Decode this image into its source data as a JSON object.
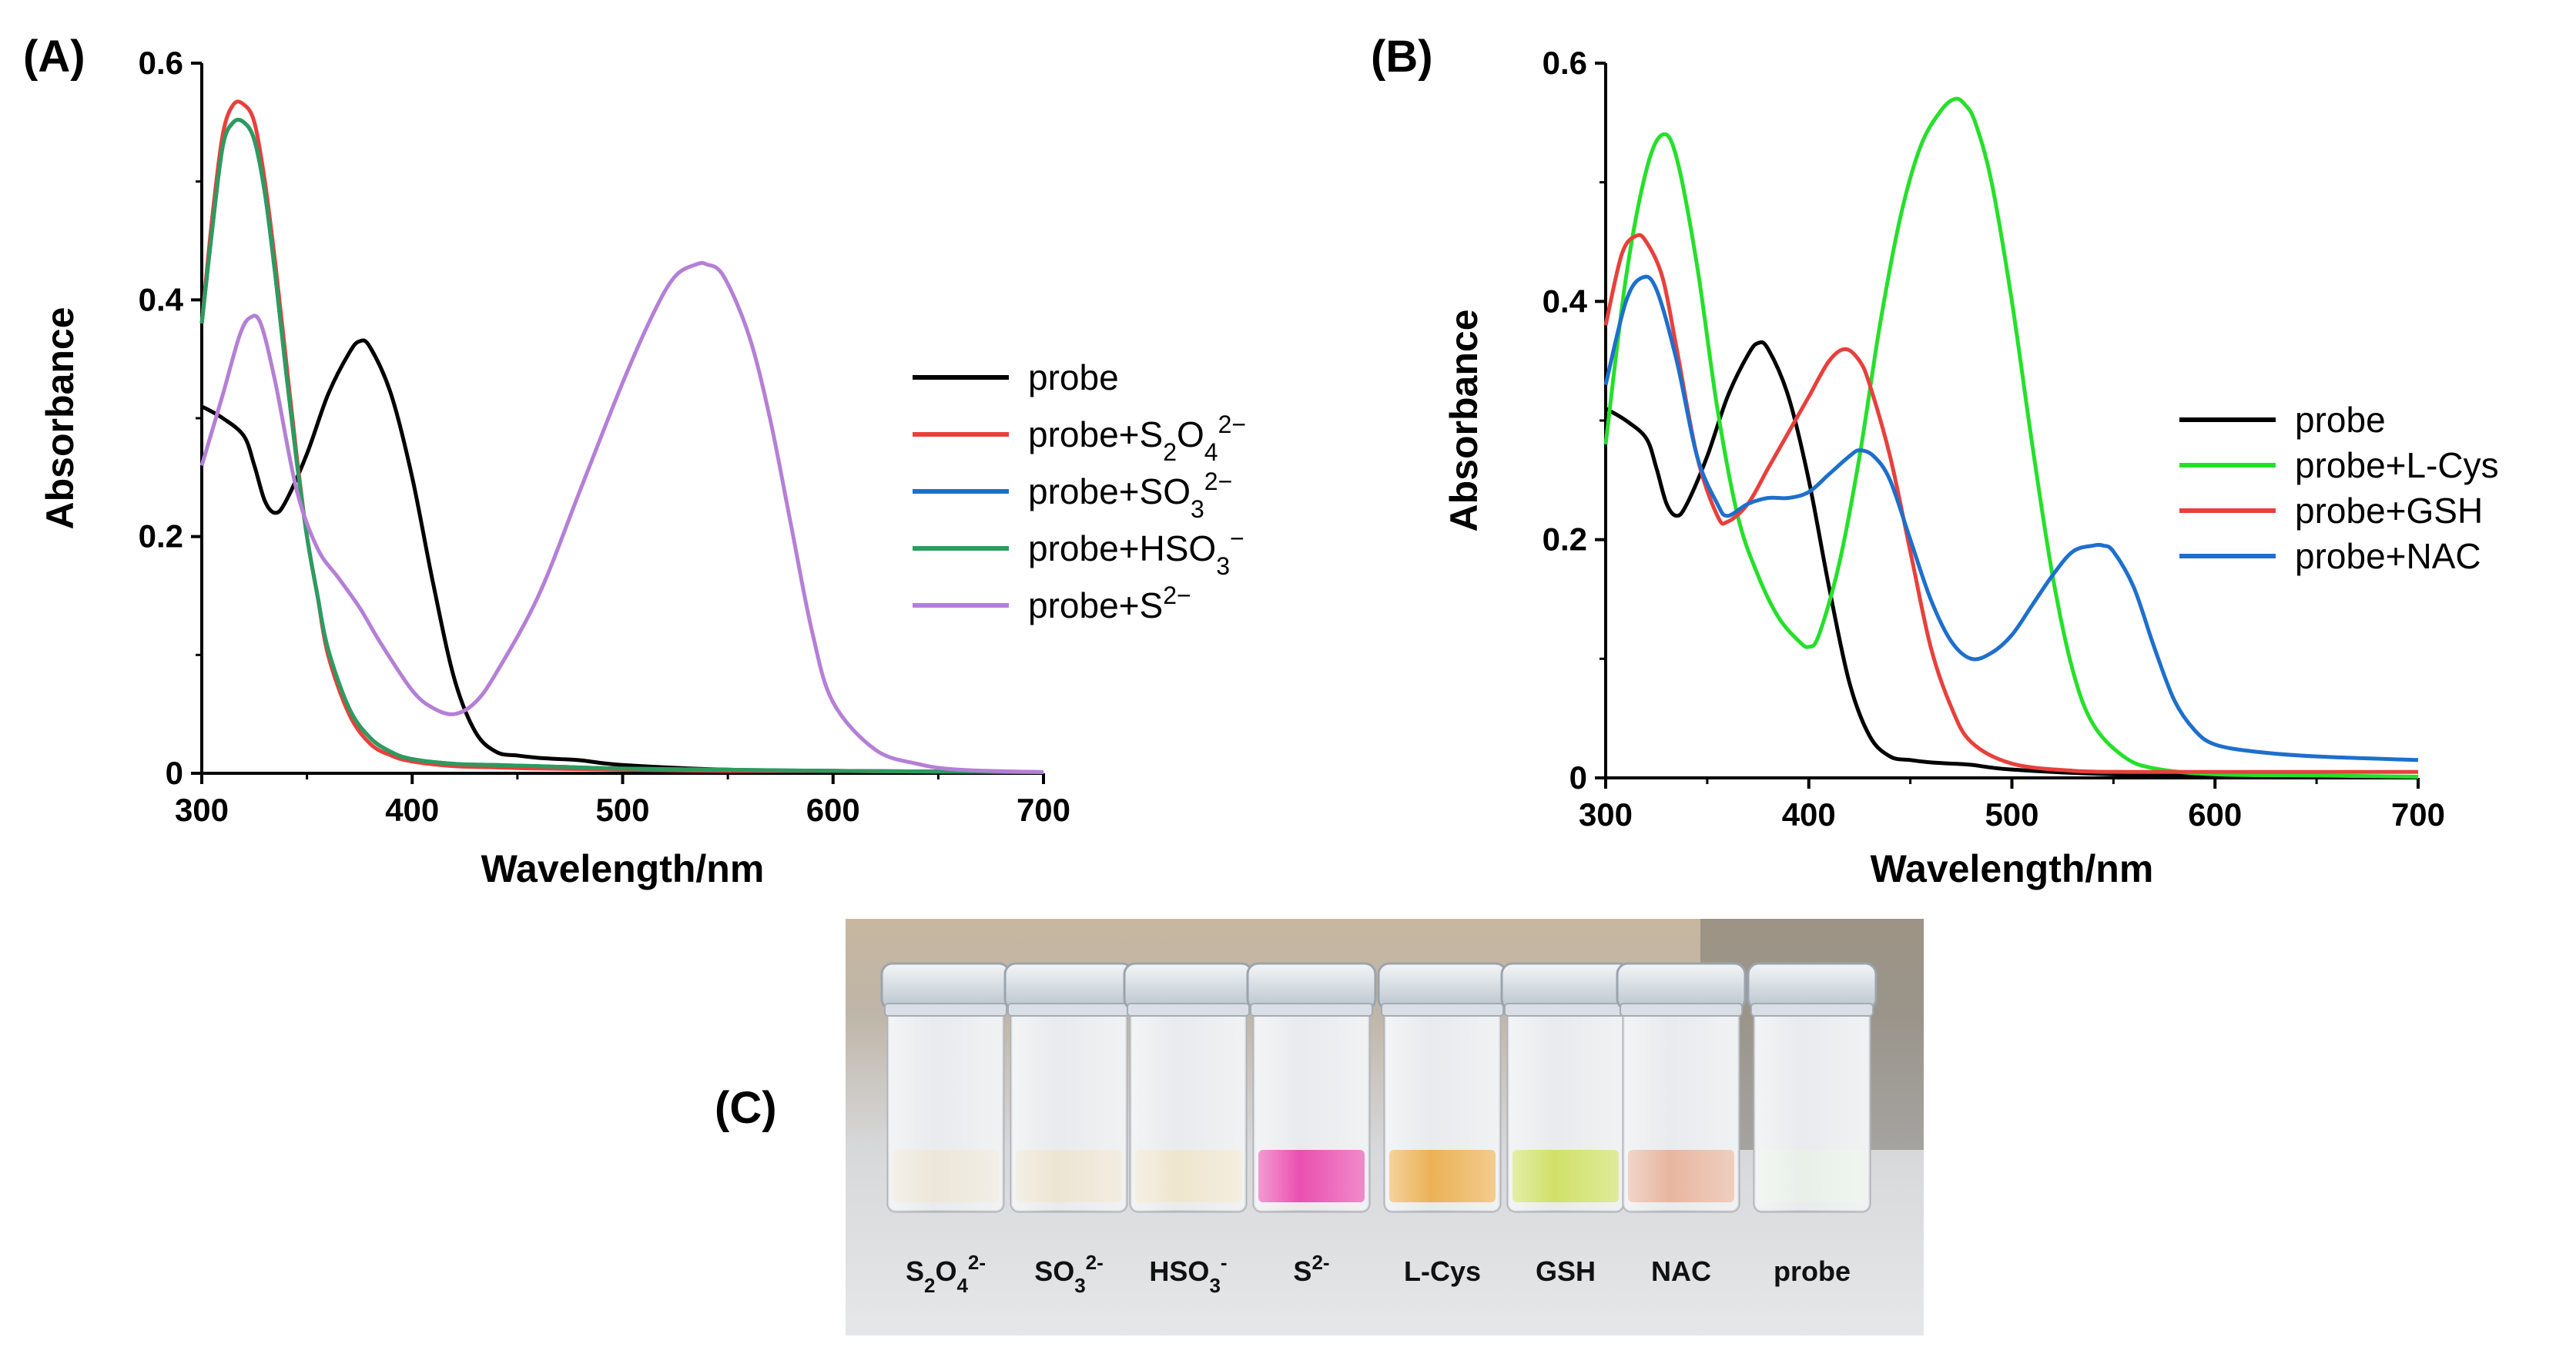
{
  "panels": {
    "a": "(A)",
    "b": "(B)",
    "c": "(C)"
  },
  "chart_data": [
    {
      "id": "A",
      "type": "line",
      "xlabel": "Wavelength/nm",
      "ylabel": "Absorbance",
      "xlim": [
        300,
        700
      ],
      "ylim": [
        0,
        0.6
      ],
      "xticks": [
        300,
        400,
        500,
        600,
        700
      ],
      "yticks": [
        0,
        0.2,
        0.4,
        0.6
      ],
      "ytick_labels": [
        "0",
        "0.2",
        "0.4",
        "0.6"
      ],
      "legend_position": "center-right",
      "series": [
        {
          "name": "probe",
          "legend_html": "probe",
          "color": "#000000",
          "x": [
            300,
            310,
            320,
            325,
            330,
            335,
            340,
            350,
            360,
            370,
            375,
            380,
            390,
            400,
            410,
            420,
            430,
            440,
            450,
            460,
            470,
            480,
            500,
            550,
            600,
            650,
            700
          ],
          "y": [
            0.31,
            0.3,
            0.285,
            0.26,
            0.23,
            0.22,
            0.23,
            0.27,
            0.32,
            0.355,
            0.365,
            0.36,
            0.32,
            0.25,
            0.16,
            0.08,
            0.035,
            0.018,
            0.015,
            0.013,
            0.012,
            0.011,
            0.007,
            0.003,
            0.002,
            0.001,
            0.001
          ]
        },
        {
          "name": "probe+S2O4 2-",
          "legend_html": "probe+S<tspan baseline-shift=\"sub\" font-size=\"32\">2</tspan>O<tspan baseline-shift=\"sub\" font-size=\"32\">4</tspan><tspan baseline-shift=\"super\" font-size=\"32\">2−</tspan>",
          "color": "#e8403c",
          "x": [
            300,
            305,
            310,
            315,
            320,
            325,
            330,
            335,
            340,
            345,
            350,
            355,
            360,
            370,
            380,
            390,
            400,
            420,
            440,
            460,
            500,
            550,
            600,
            700
          ],
          "y": [
            0.38,
            0.47,
            0.54,
            0.565,
            0.565,
            0.55,
            0.5,
            0.43,
            0.35,
            0.27,
            0.2,
            0.15,
            0.1,
            0.05,
            0.025,
            0.015,
            0.01,
            0.006,
            0.005,
            0.004,
            0.003,
            0.002,
            0.002,
            0.001
          ]
        },
        {
          "name": "probe+SO3 2-",
          "legend_html": "probe+SO<tspan baseline-shift=\"sub\" font-size=\"32\">3</tspan><tspan baseline-shift=\"super\" font-size=\"32\">2−</tspan>",
          "color": "#1e6fcc",
          "x": [
            300,
            305,
            310,
            315,
            320,
            325,
            330,
            335,
            340,
            345,
            350,
            355,
            360,
            370,
            380,
            390,
            400,
            420,
            440,
            460,
            500,
            550,
            600,
            700
          ],
          "y": [
            0.38,
            0.46,
            0.53,
            0.55,
            0.55,
            0.535,
            0.49,
            0.42,
            0.34,
            0.265,
            0.2,
            0.15,
            0.105,
            0.055,
            0.03,
            0.018,
            0.012,
            0.008,
            0.007,
            0.006,
            0.004,
            0.003,
            0.002,
            0.001
          ]
        },
        {
          "name": "probe+HSO3 -",
          "legend_html": "probe+HSO<tspan baseline-shift=\"sub\" font-size=\"32\">3</tspan><tspan baseline-shift=\"super\" font-size=\"32\">−</tspan>",
          "color": "#2e9b5e",
          "x": [
            300,
            305,
            310,
            315,
            320,
            325,
            330,
            335,
            340,
            345,
            350,
            355,
            360,
            370,
            380,
            390,
            400,
            420,
            440,
            460,
            500,
            550,
            600,
            700
          ],
          "y": [
            0.38,
            0.46,
            0.53,
            0.55,
            0.55,
            0.535,
            0.49,
            0.42,
            0.34,
            0.265,
            0.2,
            0.15,
            0.105,
            0.055,
            0.03,
            0.018,
            0.012,
            0.008,
            0.007,
            0.006,
            0.004,
            0.003,
            0.002,
            0.001
          ]
        },
        {
          "name": "probe+S2-",
          "legend_html": "probe+S<tspan baseline-shift=\"super\" font-size=\"32\">2−</tspan>",
          "color": "#b57fd6",
          "x": [
            300,
            310,
            318,
            323,
            328,
            335,
            345,
            355,
            365,
            375,
            385,
            400,
            410,
            420,
            430,
            440,
            460,
            480,
            500,
            515,
            525,
            535,
            540,
            548,
            560,
            570,
            580,
            590,
            600,
            620,
            640,
            660,
            700
          ],
          "y": [
            0.26,
            0.32,
            0.37,
            0.385,
            0.38,
            0.33,
            0.24,
            0.19,
            0.165,
            0.14,
            0.11,
            0.07,
            0.055,
            0.05,
            0.06,
            0.085,
            0.15,
            0.24,
            0.33,
            0.39,
            0.42,
            0.43,
            0.43,
            0.42,
            0.37,
            0.3,
            0.21,
            0.12,
            0.06,
            0.02,
            0.008,
            0.003,
            0.001
          ]
        }
      ]
    },
    {
      "id": "B",
      "type": "line",
      "xlabel": "Wavelength/nm",
      "ylabel": "Absorbance",
      "xlim": [
        300,
        700
      ],
      "ylim": [
        0,
        0.6
      ],
      "xticks": [
        300,
        400,
        500,
        600,
        700
      ],
      "yticks": [
        0,
        0.2,
        0.4,
        0.6
      ],
      "ytick_labels": [
        "0",
        "0.2",
        "0.4",
        "0.6"
      ],
      "legend_position": "center-right",
      "series": [
        {
          "name": "probe",
          "legend_html": "probe",
          "color": "#000000",
          "x": [
            300,
            310,
            320,
            325,
            330,
            335,
            340,
            350,
            360,
            370,
            375,
            380,
            390,
            400,
            410,
            420,
            430,
            440,
            450,
            460,
            470,
            480,
            500,
            550,
            600,
            650,
            700
          ],
          "y": [
            0.31,
            0.3,
            0.285,
            0.26,
            0.23,
            0.22,
            0.23,
            0.27,
            0.32,
            0.355,
            0.365,
            0.36,
            0.32,
            0.25,
            0.16,
            0.08,
            0.035,
            0.018,
            0.015,
            0.013,
            0.012,
            0.011,
            0.007,
            0.003,
            0.002,
            0.001,
            0.001
          ]
        },
        {
          "name": "probe+L-Cys",
          "legend_html": "probe+L-Cys",
          "color": "#25e02a",
          "x": [
            300,
            310,
            320,
            328,
            335,
            345,
            355,
            365,
            375,
            385,
            395,
            400,
            405,
            415,
            425,
            435,
            445,
            455,
            465,
            472,
            477,
            482,
            490,
            500,
            510,
            520,
            530,
            540,
            555,
            570,
            600,
            650,
            700
          ],
          "y": [
            0.28,
            0.42,
            0.51,
            0.54,
            0.52,
            0.43,
            0.31,
            0.22,
            0.17,
            0.135,
            0.115,
            0.11,
            0.12,
            0.18,
            0.27,
            0.38,
            0.47,
            0.53,
            0.56,
            0.57,
            0.565,
            0.55,
            0.5,
            0.4,
            0.28,
            0.17,
            0.09,
            0.045,
            0.018,
            0.008,
            0.003,
            0.002,
            0.001
          ]
        },
        {
          "name": "probe+GSH",
          "legend_html": "probe+GSH",
          "color": "#e8403c",
          "x": [
            300,
            308,
            315,
            320,
            328,
            335,
            345,
            355,
            360,
            370,
            380,
            390,
            400,
            410,
            418,
            425,
            430,
            440,
            450,
            460,
            470,
            480,
            500,
            530,
            560,
            600,
            650,
            700
          ],
          "y": [
            0.38,
            0.44,
            0.455,
            0.45,
            0.42,
            0.36,
            0.27,
            0.22,
            0.215,
            0.23,
            0.26,
            0.29,
            0.32,
            0.35,
            0.36,
            0.35,
            0.33,
            0.27,
            0.19,
            0.11,
            0.06,
            0.03,
            0.012,
            0.006,
            0.005,
            0.005,
            0.005,
            0.005
          ]
        },
        {
          "name": "probe+NAC",
          "legend_html": "probe+NAC",
          "color": "#1e6fcc",
          "x": [
            300,
            310,
            318,
            325,
            335,
            345,
            355,
            360,
            370,
            380,
            390,
            400,
            410,
            420,
            425,
            432,
            440,
            450,
            460,
            470,
            480,
            490,
            500,
            510,
            520,
            530,
            540,
            545,
            550,
            560,
            570,
            580,
            590,
            600,
            620,
            650,
            700
          ],
          "y": [
            0.33,
            0.4,
            0.42,
            0.41,
            0.35,
            0.27,
            0.23,
            0.22,
            0.23,
            0.235,
            0.235,
            0.24,
            0.255,
            0.27,
            0.275,
            0.27,
            0.25,
            0.2,
            0.15,
            0.115,
            0.1,
            0.105,
            0.12,
            0.145,
            0.17,
            0.19,
            0.195,
            0.195,
            0.19,
            0.16,
            0.11,
            0.065,
            0.04,
            0.028,
            0.022,
            0.018,
            0.015
          ]
        }
      ]
    }
  ],
  "vials": {
    "labels_html": [
      "S<tspan baseline-shift=\"sub\" font-size=\"26\">2</tspan>O<tspan baseline-shift=\"sub\" font-size=\"26\">4</tspan><tspan baseline-shift=\"super\" font-size=\"26\">2-</tspan>",
      "SO<tspan baseline-shift=\"sub\" font-size=\"26\">3</tspan><tspan baseline-shift=\"super\" font-size=\"26\">2-</tspan>",
      "HSO<tspan baseline-shift=\"sub\" font-size=\"26\">3</tspan><tspan baseline-shift=\"super\" font-size=\"26\">-</tspan>",
      "S<tspan baseline-shift=\"super\" font-size=\"26\">2-</tspan>",
      "L-Cys",
      "GSH",
      "NAC",
      "probe"
    ],
    "solution_colors": [
      "#e9e2d2",
      "#eadfc9",
      "#ece0c4",
      "#e6279e",
      "#e8a02e",
      "#c6db46",
      "#e3a58a",
      "#e4ede4"
    ]
  }
}
